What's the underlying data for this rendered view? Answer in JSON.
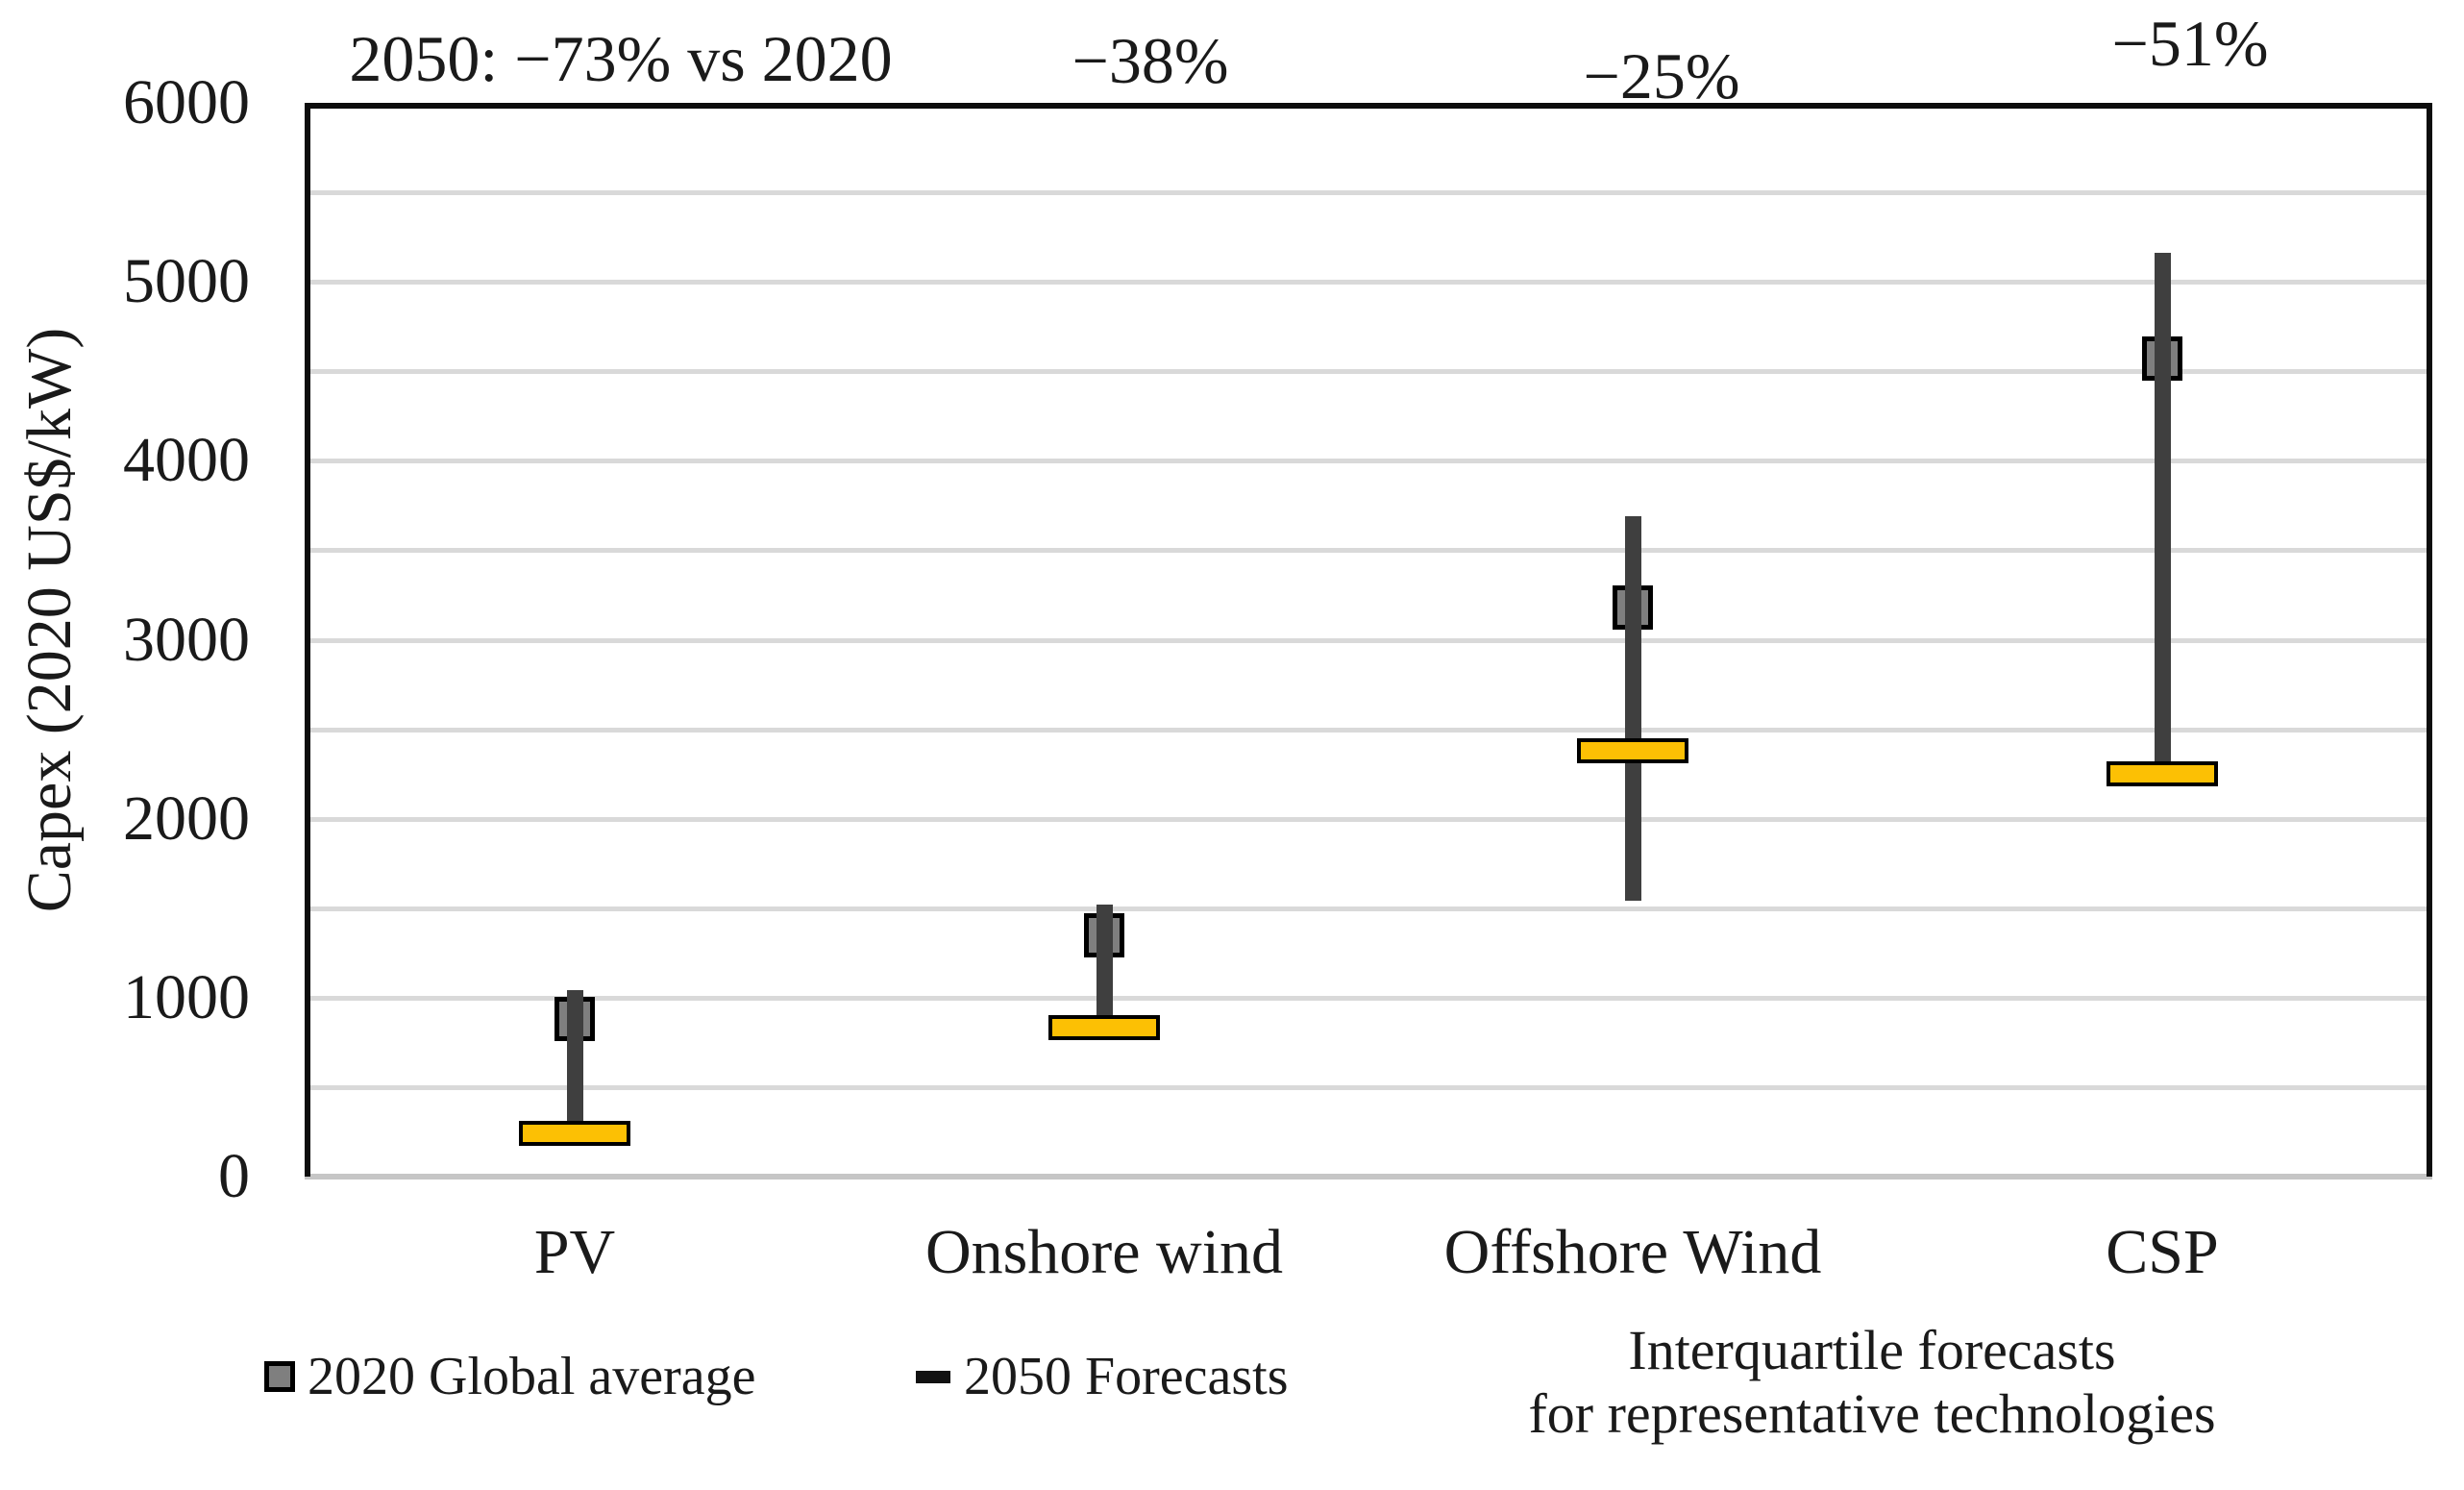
{
  "y_axis": {
    "title": "Capex (2020 US$/kW)"
  },
  "legend": {
    "items": [
      {
        "label": "2020 Global average",
        "marker": "gray-square"
      },
      {
        "label": "2050 Forecasts",
        "marker": "black-dash"
      }
    ]
  },
  "caption": {
    "line1": "Interquartile forecasts",
    "line2": "for representative technologies"
  },
  "colors": {
    "forecast_bar": "#FCC004",
    "average_marker_fill": "#7F7F7F",
    "marker_border": "#000000",
    "whisker": "#3F3F3F",
    "gridline": "#D9D9D9",
    "axis_line": "#C6C6C6",
    "plot_border": "#0D0D0D",
    "text": "#1A1A1A"
  },
  "chart_data": {
    "type": "bar",
    "variant": "high-low-range-with-markers",
    "title": "",
    "categories": [
      "PV",
      "Onshore wind",
      "Offshore Wind",
      "CSP"
    ],
    "series": [
      {
        "name": "2020 Global average",
        "marker": "gray-square",
        "values": [
          880,
          1350,
          3180,
          4570
        ]
      },
      {
        "name": "2050 Forecasts",
        "marker": "yellow-bar",
        "values": [
          240,
          835,
          2380,
          2250
        ]
      },
      {
        "name": "2050 forecast range (whisker)",
        "marker": "dark-vertical-line",
        "low": [
          240,
          835,
          1540,
          2250
        ],
        "high": [
          1040,
          1520,
          3690,
          5160
        ]
      }
    ],
    "annotations": [
      {
        "text": "2050: −73% vs 2020",
        "pct_change_2050_vs_2020": -73
      },
      {
        "text": "−38%",
        "pct_change_2050_vs_2020": -38
      },
      {
        "text": "−25%",
        "pct_change_2050_vs_2020": -25
      },
      {
        "text": "−51%",
        "pct_change_2050_vs_2020": -51
      }
    ],
    "xlabel": "",
    "ylabel": "Capex (2020 US$/kW)",
    "ylim": [
      0,
      6000
    ],
    "ytick_step": 1000,
    "minor_gridline_step": 500,
    "grid": true,
    "legend_position": "bottom"
  }
}
